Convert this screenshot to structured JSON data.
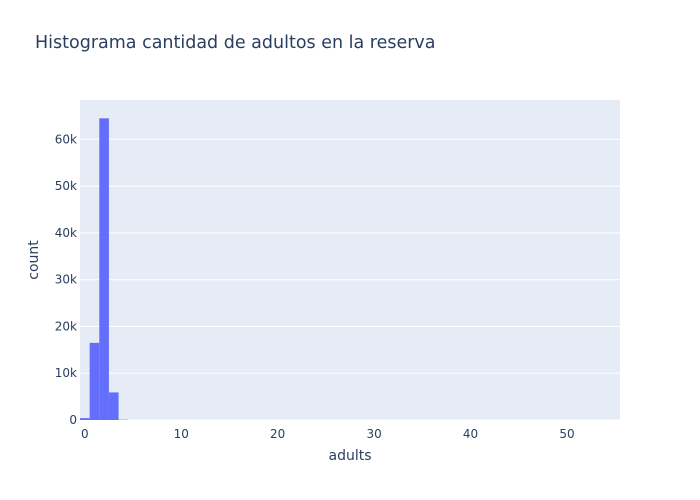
{
  "chart_data": {
    "type": "bar",
    "title": "Histograma cantidad de adultos en la reserva",
    "xlabel": "adults",
    "ylabel": "count",
    "xlim": [
      -0.5,
      55.5
    ],
    "ylim": [
      0,
      68421
    ],
    "x_ticks": [
      0,
      10,
      20,
      30,
      40,
      50
    ],
    "x_tick_labels": [
      "0",
      "10",
      "20",
      "30",
      "40",
      "50"
    ],
    "y_ticks": [
      0,
      10000,
      20000,
      30000,
      40000,
      50000,
      60000
    ],
    "y_tick_labels": [
      "0",
      "10k",
      "20k",
      "30k",
      "40k",
      "50k",
      "60k"
    ],
    "bin_size": 1,
    "bins": [
      {
        "start": -0.5,
        "end": 0.5,
        "value": 400
      },
      {
        "start": 0.5,
        "end": 1.5,
        "value": 16500
      },
      {
        "start": 1.5,
        "end": 2.5,
        "value": 64500
      },
      {
        "start": 2.5,
        "end": 3.5,
        "value": 5900
      },
      {
        "start": 3.5,
        "end": 4.5,
        "value": 60
      },
      {
        "start": 4.5,
        "end": 5.5,
        "value": 2
      }
    ],
    "bar_color": "#636efa",
    "plot_bgcolor": "#e5ecf6",
    "grid": true
  }
}
